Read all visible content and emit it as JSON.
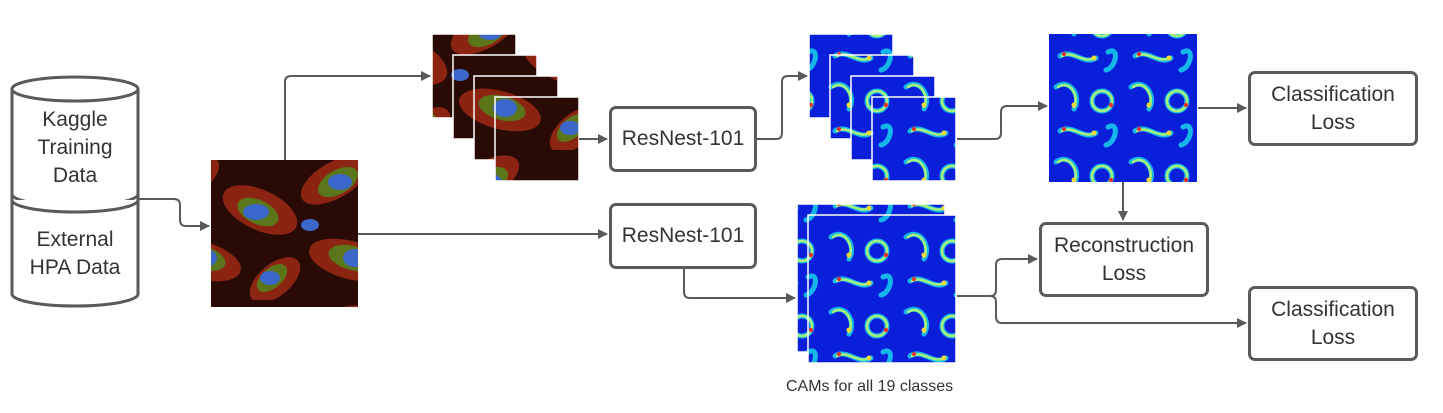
{
  "database": {
    "top_label": "Kaggle\nTraining\nData",
    "bottom_label": "External\nHPA Data"
  },
  "nodes": {
    "resnest_top": "ResNest-101",
    "resnest_bottom": "ResNest-101",
    "classification_loss_top": "Classification\nLoss",
    "reconstruction_loss": "Reconstruction\nLoss",
    "classification_loss_bottom": "Classification\nLoss"
  },
  "caption": "CAMs for all 19 classes",
  "colors": {
    "stroke": "#5a5a5a",
    "text": "#333333",
    "cam_background": "#0a1fd9",
    "cam_high": "#e8312a"
  }
}
